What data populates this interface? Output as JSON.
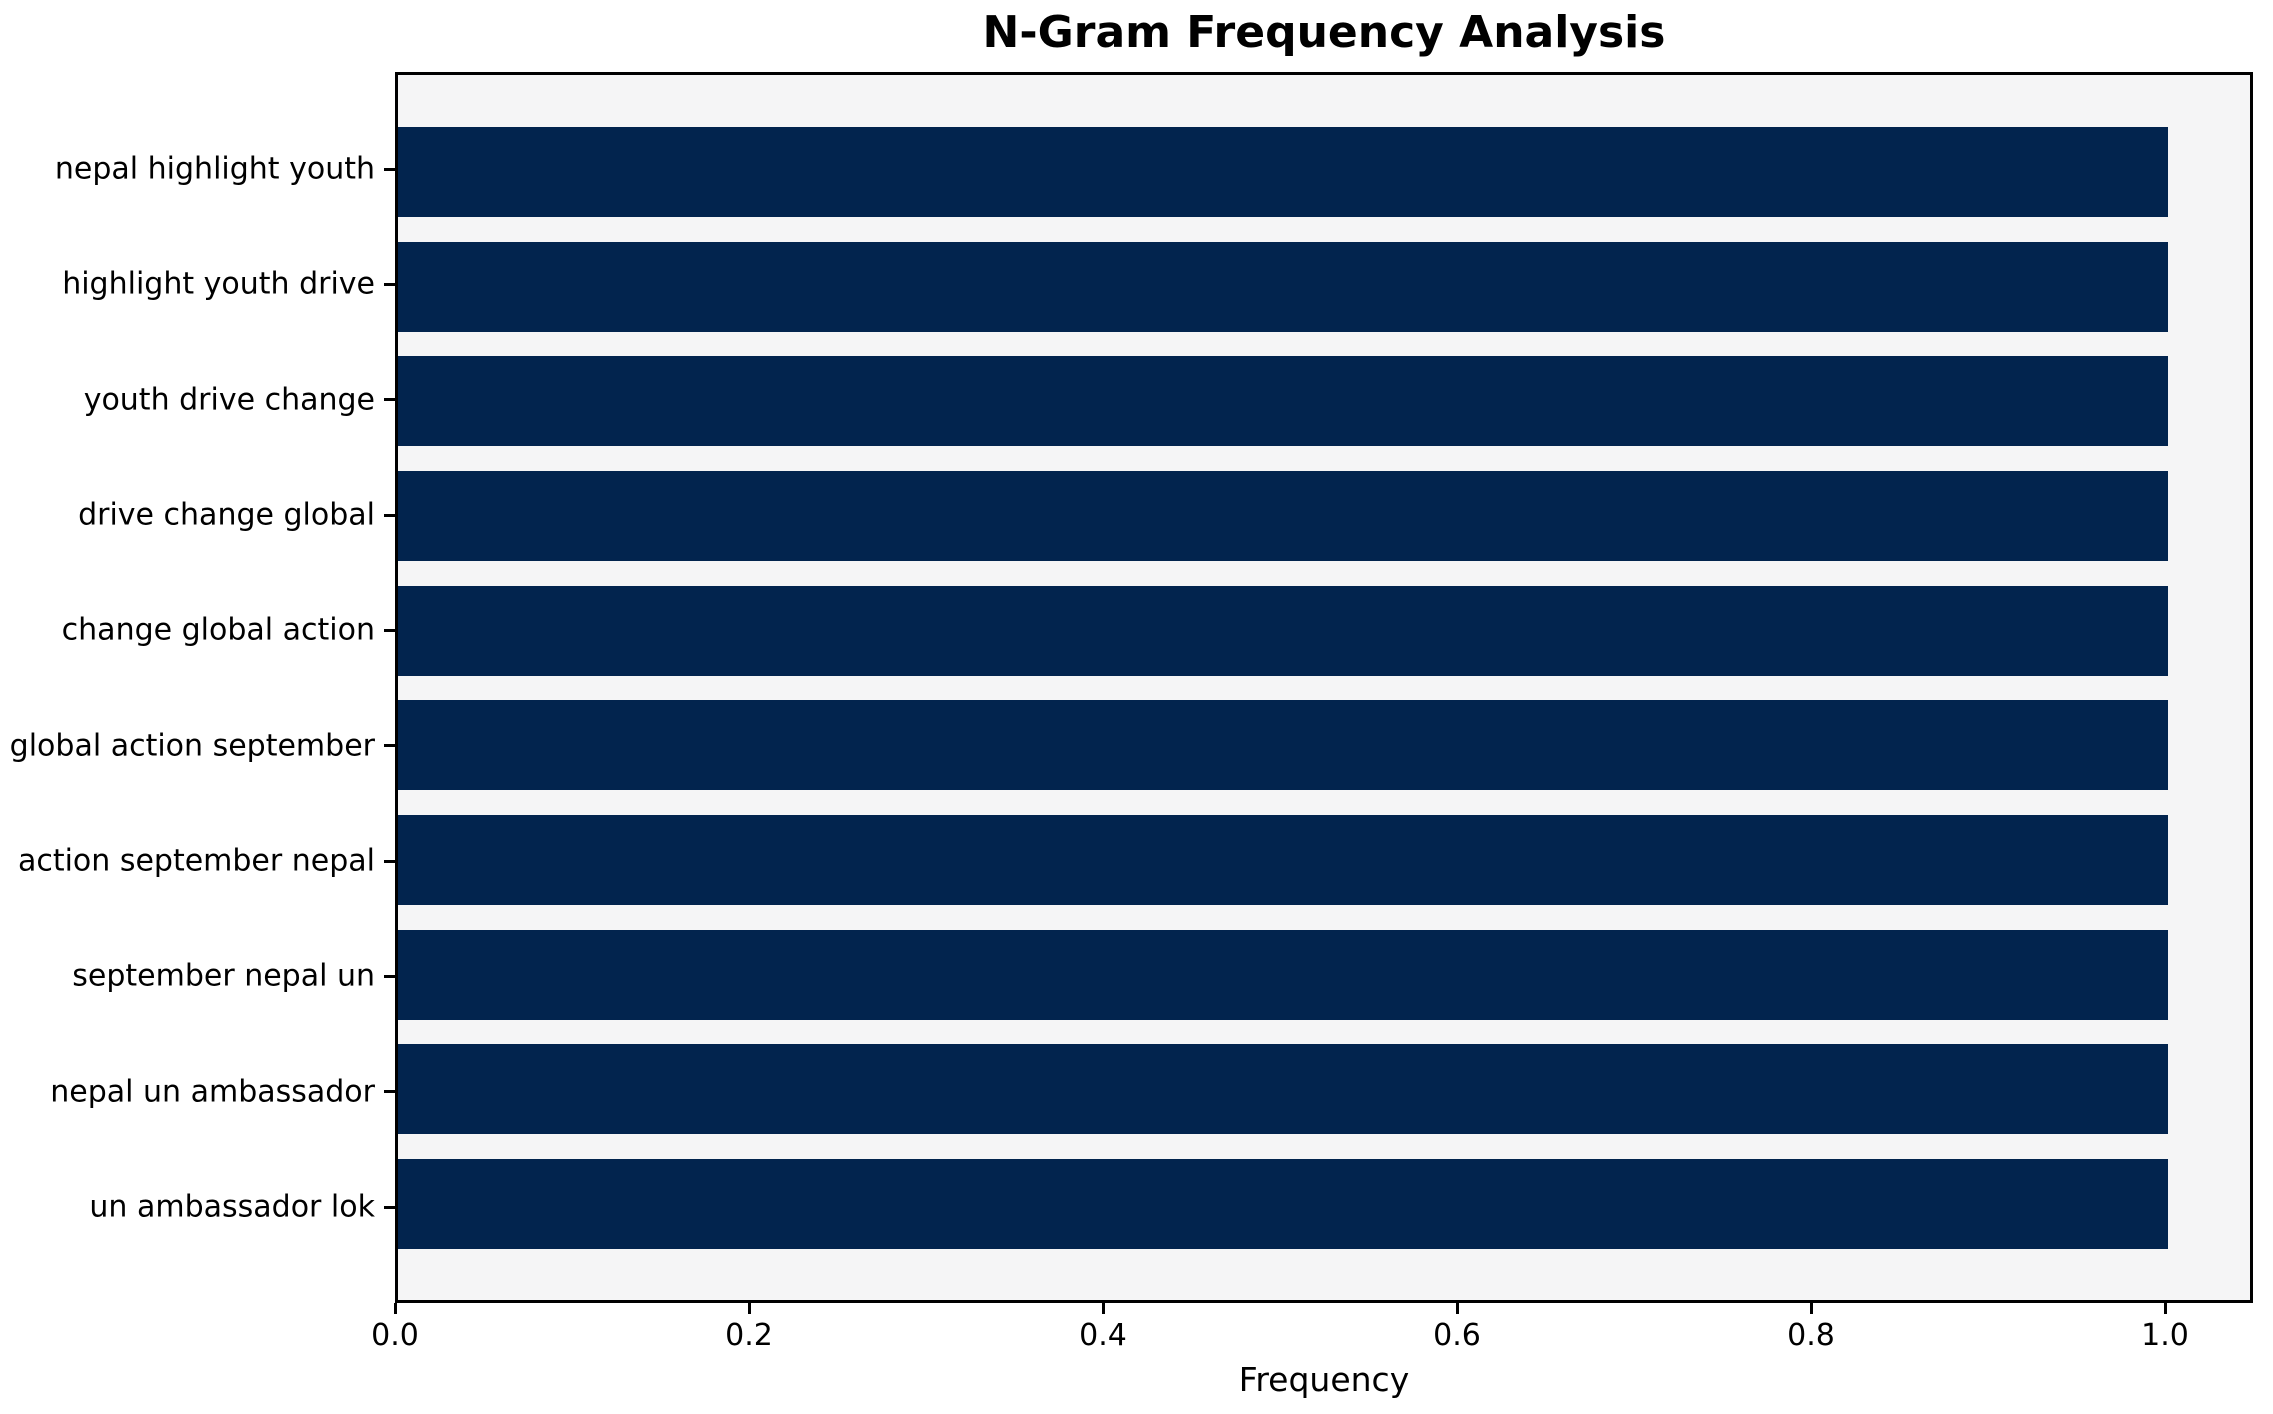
{
  "chart_data": {
    "type": "bar",
    "orientation": "horizontal",
    "title": "N-Gram Frequency Analysis",
    "xlabel": "Frequency",
    "ylabel": "",
    "categories": [
      "nepal highlight youth",
      "highlight youth drive",
      "youth drive change",
      "drive change global",
      "change global action",
      "global action september",
      "action september nepal",
      "september nepal un",
      "nepal un ambassador",
      "un ambassador lok"
    ],
    "values": [
      1.0,
      1.0,
      1.0,
      1.0,
      1.0,
      1.0,
      1.0,
      1.0,
      1.0,
      1.0
    ],
    "x_ticks": [
      0.0,
      0.2,
      0.4,
      0.6,
      0.8,
      1.0
    ],
    "x_tick_labels": [
      "0.0",
      "0.2",
      "0.4",
      "0.6",
      "0.8",
      "1.0"
    ],
    "xlim": [
      0.0,
      1.05
    ],
    "grid": false,
    "legend": null,
    "colors": {
      "bar": "#02244e",
      "plot_background": "#f5f5f6",
      "figure_background": "#ffffff",
      "spine": "#000000",
      "text": "#000000"
    }
  }
}
